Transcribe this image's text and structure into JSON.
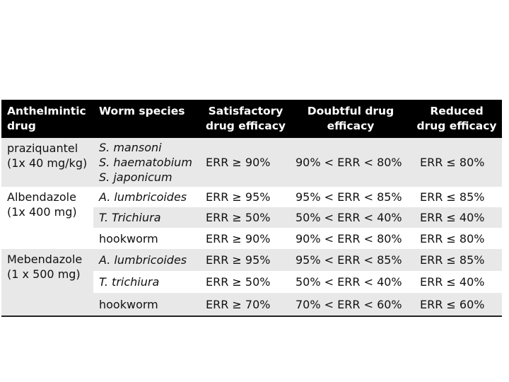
{
  "table": {
    "header": {
      "drug": "Anthelmintic\ndrug",
      "species": "Worm species",
      "satisfactory": "Satisfactory\ndrug efficacy",
      "doubtful": "Doubtful drug\nefficacy",
      "reduced": "Reduced\ndrug efficacy"
    },
    "groups": [
      {
        "drug": "praziquantel\n(1x 40 mg/kg)",
        "rows": [
          {
            "species": "S. mansoni\nS. haematobium\nS. japonicum",
            "satisfactory": "ERR ≥ 90%",
            "doubtful": "90% < ERR < 80%",
            "reduced": "ERR ≤ 80%"
          }
        ]
      },
      {
        "drug": "Albendazole\n(1x 400 mg)",
        "rows": [
          {
            "species": "A. lumbricoides",
            "satisfactory": "ERR ≥ 95%",
            "doubtful": "95% < ERR < 85%",
            "reduced": "ERR ≤ 85%"
          },
          {
            "species": "T. Trichiura",
            "satisfactory": "ERR ≥ 50%",
            "doubtful": "50% < ERR < 40%",
            "reduced": "ERR ≤ 40%"
          },
          {
            "species": "hookworm",
            "satisfactory": "ERR ≥ 90%",
            "doubtful": "90% < ERR < 80%",
            "reduced": "ERR ≤ 80%"
          }
        ]
      },
      {
        "drug": "Mebendazole\n(1 x 500 mg)",
        "rows": [
          {
            "species": "A. lumbricoides",
            "satisfactory": "ERR ≥ 95%",
            "doubtful": "95% < ERR < 85%",
            "reduced": "ERR ≤ 85%"
          },
          {
            "species": "T. trichiura",
            "satisfactory": "ERR ≥ 50%",
            "doubtful": "50% < ERR < 40%",
            "reduced": "ERR ≤ 40%"
          },
          {
            "species": "hookworm",
            "satisfactory": "ERR ≥ 70%",
            "doubtful": "70% < ERR < 60%",
            "reduced": "ERR ≤ 60%"
          }
        ]
      }
    ]
  },
  "colors": {
    "header_bg": "#000000",
    "header_text": "#ffffff",
    "band_gray": "#e8e8e8",
    "band_white": "#ffffff",
    "rule": "#222222"
  }
}
